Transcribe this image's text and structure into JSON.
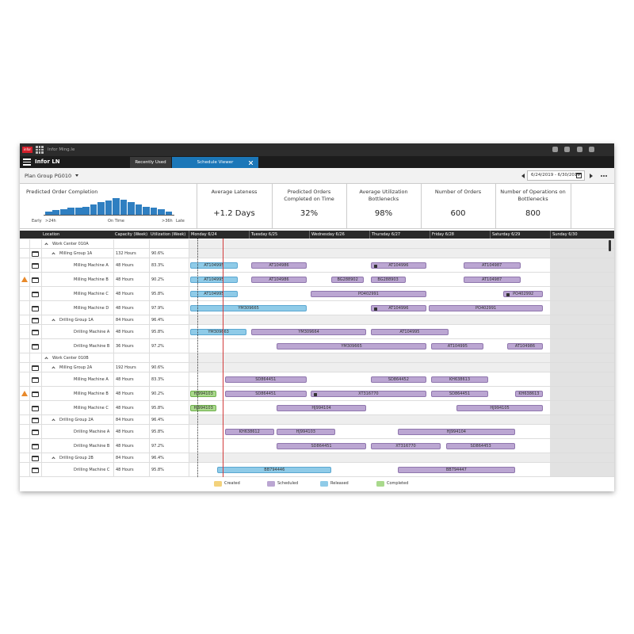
{
  "top_bar": {
    "logo": "infor",
    "app": "Infor Ming.le"
  },
  "nav": {
    "product": "Infor LN",
    "tabs": [
      {
        "label": "Recently Used",
        "active": false
      },
      {
        "label": "Schedule Viewer",
        "active": true
      }
    ]
  },
  "toolbar": {
    "plan_group": "Plan Group PG010",
    "date_range": "6/24/2019 - 6/30/2019"
  },
  "histogram": {
    "title": "Predicted Order Completion",
    "color": "#2f7fc1",
    "values": [
      3,
      4,
      5,
      6,
      6,
      7,
      9,
      11,
      12,
      14,
      13,
      11,
      9,
      7,
      6,
      5,
      3
    ],
    "labels": [
      "Early",
      ">24h",
      "On Time",
      ">36h",
      "Late"
    ]
  },
  "kpis": [
    {
      "title": "Average Lateness",
      "value": "+1.2 Days"
    },
    {
      "title": "Predicted Orders Completed on Time",
      "value": "32%"
    },
    {
      "title": "Average Utilization Bottlenecks",
      "value": "98%"
    },
    {
      "title": "Number of Orders",
      "value": "600"
    },
    {
      "title": "Number of Operations on Bottlenecks",
      "value": "800"
    }
  ],
  "grid": {
    "columns": [
      "Location",
      "Capacity (Week)",
      "Utilization (Week)"
    ],
    "days": [
      "Monday 6/24",
      "Tuesday 6/25",
      "Wednesday 6/26",
      "Thursday 6/27",
      "Friday 6/28",
      "Saturday 6/29",
      "Sunday 6/30"
    ],
    "rows": [
      {
        "level": "center",
        "location": "Work Center 010A"
      },
      {
        "level": "group",
        "location": "Milling Group 1A",
        "capacity": "132 Hours",
        "utilization": "90.6%"
      },
      {
        "level": "machine",
        "location": "Milling Machine A",
        "capacity": "48 Hours",
        "utilization": "83.3%",
        "bars": [
          {
            "label": "AT104995",
            "status": "Released",
            "start": 0.03,
            "end": 0.81
          },
          {
            "label": "AT104986",
            "status": "Scheduled",
            "start": 1.04,
            "end": 1.96
          },
          {
            "label": "AT104996",
            "status": "Scheduled",
            "start": 3.02,
            "end": 3.95,
            "locked": true
          },
          {
            "label": "AT104987",
            "status": "Scheduled",
            "start": 4.56,
            "end": 5.51
          }
        ]
      },
      {
        "level": "machine",
        "location": "Milling Machine B",
        "capacity": "48 Hours",
        "utilization": "90.2%",
        "warning": true,
        "bars": [
          {
            "label": "AT104995",
            "status": "Released",
            "start": 0.03,
            "end": 0.81
          },
          {
            "label": "AT104986",
            "status": "Scheduled",
            "start": 1.04,
            "end": 1.96
          },
          {
            "label": "BG288902",
            "status": "Scheduled",
            "start": 2.37,
            "end": 2.91
          },
          {
            "label": "BG288903",
            "status": "Scheduled",
            "start": 3.02,
            "end": 3.6
          },
          {
            "label": "AT104987",
            "status": "Scheduled",
            "start": 4.56,
            "end": 5.51
          }
        ]
      },
      {
        "level": "machine",
        "location": "Milling Machine C",
        "capacity": "48 Hours",
        "utilization": "95.8%",
        "bars": [
          {
            "label": "AT104995",
            "status": "Released",
            "start": 0.03,
            "end": 0.81
          },
          {
            "label": "PO402991",
            "status": "Scheduled",
            "start": 2.02,
            "end": 3.95
          },
          {
            "label": "PO402992",
            "status": "Scheduled",
            "start": 5.23,
            "end": 5.88,
            "locked": true
          }
        ]
      },
      {
        "level": "machine",
        "location": "Milling Machine D",
        "capacity": "48 Hours",
        "utilization": "97.9%",
        "bars": [
          {
            "label": "YM309665",
            "status": "Released",
            "start": 0.03,
            "end": 1.96
          },
          {
            "label": "AT104996",
            "status": "Scheduled",
            "start": 3.02,
            "end": 3.95,
            "locked": true
          },
          {
            "label": "PO402991",
            "status": "Scheduled",
            "start": 3.99,
            "end": 5.88
          }
        ]
      },
      {
        "level": "group",
        "location": "Drilling Group 1A",
        "capacity": "84 Hours",
        "utilization": "96.4%"
      },
      {
        "level": "machine",
        "location": "Drilling Machine A",
        "capacity": "48 Hours",
        "utilization": "95.8%",
        "bars": [
          {
            "label": "YM309663",
            "status": "Released",
            "start": 0.03,
            "end": 0.96
          },
          {
            "label": "YM309664",
            "status": "Scheduled",
            "start": 1.04,
            "end": 2.95
          },
          {
            "label": "AT104995",
            "status": "Scheduled",
            "start": 3.02,
            "end": 4.32
          }
        ]
      },
      {
        "level": "machine",
        "location": "Drilling Machine B",
        "capacity": "36 Hours",
        "utilization": "97.2%",
        "bars": [
          {
            "label": "YM309665",
            "status": "Scheduled",
            "start": 1.46,
            "end": 3.95
          },
          {
            "label": "AT104995",
            "status": "Scheduled",
            "start": 4.03,
            "end": 4.9
          },
          {
            "label": "AT104986",
            "status": "Scheduled",
            "start": 5.29,
            "end": 5.88
          }
        ]
      },
      {
        "level": "center",
        "location": "Work Center 010B"
      },
      {
        "level": "group",
        "location": "Milling Group 2A",
        "capacity": "192 Hours",
        "utilization": "90.6%"
      },
      {
        "level": "machine",
        "location": "Milling Machine A",
        "capacity": "48 Hours",
        "utilization": "83.3%",
        "bars": [
          {
            "label": "SD864451",
            "status": "Scheduled",
            "start": 0.6,
            "end": 1.96
          },
          {
            "label": "SD864452",
            "status": "Scheduled",
            "start": 3.02,
            "end": 3.95
          },
          {
            "label": "KH638613",
            "status": "Scheduled",
            "start": 4.03,
            "end": 4.97
          }
        ]
      },
      {
        "level": "machine",
        "location": "Milling Machine B",
        "capacity": "48 Hours",
        "utilization": "90.2%",
        "warning": true,
        "bars": [
          {
            "label": "HJ994103",
            "status": "Completed",
            "start": 0.03,
            "end": 0.46
          },
          {
            "label": "SD864451",
            "status": "Scheduled",
            "start": 0.6,
            "end": 1.96
          },
          {
            "label": "XT316770",
            "status": "Scheduled",
            "start": 2.02,
            "end": 3.95,
            "locked": true
          },
          {
            "label": "SD864451",
            "status": "Scheduled",
            "start": 4.03,
            "end": 4.97
          },
          {
            "label": "KH638613",
            "status": "Scheduled",
            "start": 5.42,
            "end": 5.88
          }
        ]
      },
      {
        "level": "machine",
        "location": "Milling Machine C",
        "capacity": "48 Hours",
        "utilization": "95.8%",
        "bars": [
          {
            "label": "HJ994103",
            "status": "Completed",
            "start": 0.03,
            "end": 0.46
          },
          {
            "label": "HJ994104",
            "status": "Scheduled",
            "start": 1.46,
            "end": 2.95
          },
          {
            "label": "HJ994105",
            "status": "Scheduled",
            "start": 4.45,
            "end": 5.88
          }
        ]
      },
      {
        "level": "group",
        "location": "Drilling Group 2A",
        "capacity": "84 Hours",
        "utilization": "96.4%"
      },
      {
        "level": "machine",
        "location": "Drilling Machine A",
        "capacity": "48 Hours",
        "utilization": "95.8%",
        "bars": [
          {
            "label": "KH638612",
            "status": "Scheduled",
            "start": 0.6,
            "end": 1.42
          },
          {
            "label": "HJ994103",
            "status": "Scheduled",
            "start": 1.46,
            "end": 2.43
          },
          {
            "label": "HJ994104",
            "status": "Scheduled",
            "start": 3.47,
            "end": 5.42
          }
        ]
      },
      {
        "level": "machine",
        "location": "Drilling Machine B",
        "capacity": "48 Hours",
        "utilization": "97.2%",
        "bars": [
          {
            "label": "SD864451",
            "status": "Scheduled",
            "start": 1.46,
            "end": 2.95
          },
          {
            "label": "XT316770",
            "status": "Scheduled",
            "start": 3.02,
            "end": 4.19
          },
          {
            "label": "SD864453",
            "status": "Scheduled",
            "start": 4.28,
            "end": 5.42
          }
        ]
      },
      {
        "level": "group",
        "location": "Drilling Group 2B",
        "capacity": "84 Hours",
        "utilization": "96.4%"
      },
      {
        "level": "machine",
        "location": "Drilling Machine C",
        "capacity": "48 Hours",
        "utilization": "95.8%",
        "bars": [
          {
            "label": "BB794446",
            "status": "Released",
            "start": 0.48,
            "end": 2.37
          },
          {
            "label": "BB794447",
            "status": "Scheduled",
            "start": 3.47,
            "end": 5.42
          }
        ]
      }
    ]
  },
  "legend": [
    {
      "label": "Created",
      "color": "#f3d27c"
    },
    {
      "label": "Scheduled",
      "color": "#bba6d2"
    },
    {
      "label": "Released",
      "color": "#8fcbe8"
    },
    {
      "label": "Completed",
      "color": "#a9d98c"
    }
  ]
}
